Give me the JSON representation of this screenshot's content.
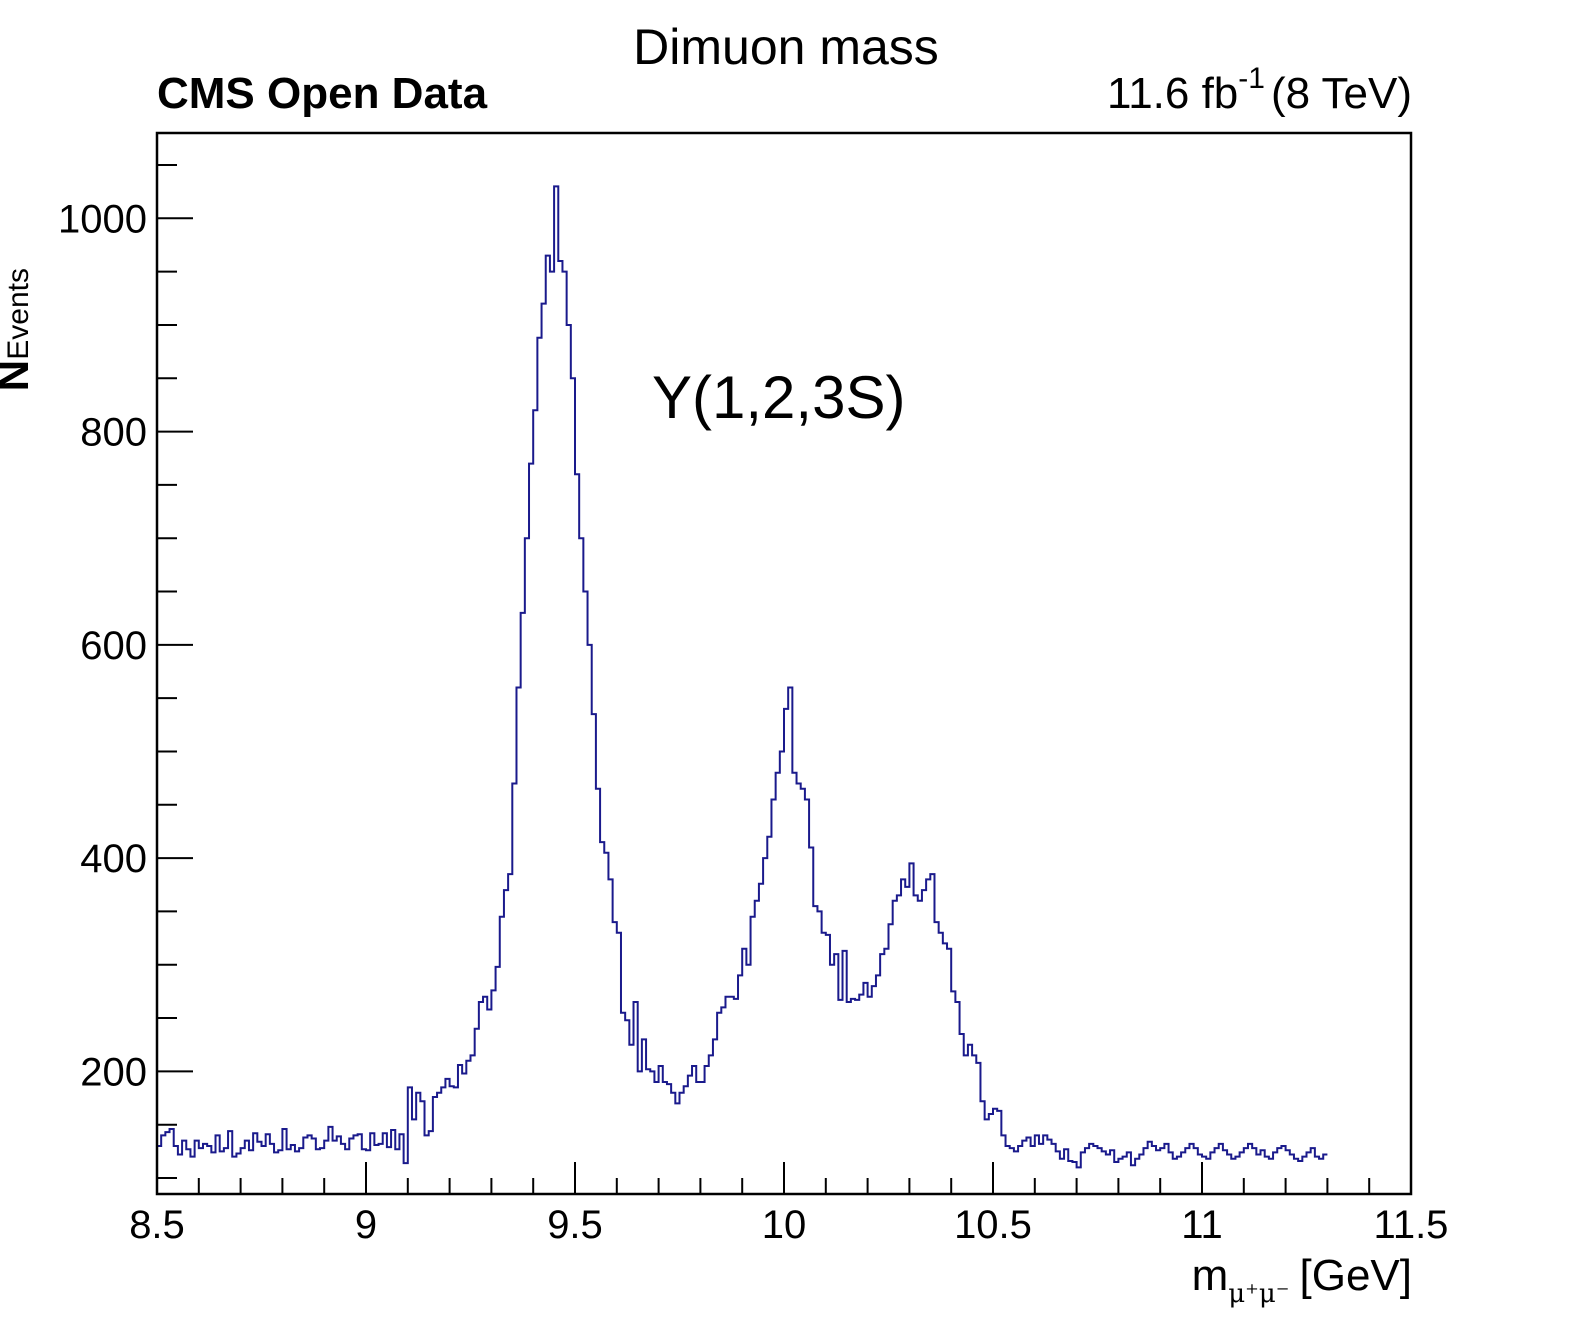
{
  "header": {
    "title": "Dimuon mass",
    "experiment": "CMS Open Data",
    "lumi_value": "11.6 fb",
    "lumi_exp": "-1",
    "energy": "(8 TeV)"
  },
  "chart_data": {
    "type": "histogram",
    "title": "Dimuon mass",
    "xlabel_base": "m",
    "xlabel_sub": "μ⁺μ⁻",
    "xlabel_unit": "[GeV]",
    "ylabel_base": "N",
    "ylabel_sub": "Events",
    "annotation": "Υ(1,2,3S)",
    "xlim": [
      8.5,
      11.5
    ],
    "ylim": [
      85,
      1080
    ],
    "x_ticks": [
      8.5,
      9,
      9.5,
      10,
      10.5,
      11,
      11.5
    ],
    "x_tick_labels": [
      "8.5",
      "9",
      "9.5",
      "10",
      "10.5",
      "11",
      "11.5"
    ],
    "y_ticks": [
      200,
      400,
      600,
      800,
      1000
    ],
    "y_tick_labels": [
      "200",
      "400",
      "600",
      "800",
      "1000"
    ],
    "grid": false,
    "line_color": "#1a1a8c",
    "x_start": 8.5,
    "bin_width": 0.01,
    "values": [
      130,
      140,
      143,
      146,
      130,
      122,
      135,
      127,
      120,
      135,
      128,
      132,
      130,
      124,
      140,
      125,
      128,
      144,
      120,
      123,
      128,
      135,
      126,
      142,
      134,
      130,
      141,
      132,
      124,
      126,
      146,
      127,
      131,
      125,
      128,
      138,
      140,
      137,
      127,
      128,
      135,
      148,
      135,
      139,
      132,
      127,
      137,
      140,
      141,
      127,
      126,
      142,
      131,
      132,
      142,
      129,
      145,
      127,
      141,
      114,
      185,
      155,
      180,
      172,
      140,
      144,
      176,
      180,
      185,
      193,
      186,
      185,
      206,
      198,
      210,
      215,
      240,
      265,
      270,
      258,
      276,
      298,
      345,
      370,
      385,
      470,
      560,
      630,
      700,
      770,
      820,
      888,
      920,
      965,
      950,
      1030,
      960,
      950,
      900,
      850,
      760,
      700,
      650,
      600,
      535,
      465,
      415,
      405,
      380,
      340,
      330,
      255,
      248,
      225,
      265,
      200,
      230,
      202,
      200,
      190,
      205,
      190,
      188,
      180,
      170,
      180,
      186,
      196,
      205,
      190,
      190,
      205,
      215,
      230,
      255,
      260,
      270,
      270,
      268,
      290,
      315,
      300,
      345,
      360,
      376,
      400,
      420,
      455,
      480,
      500,
      540,
      560,
      480,
      470,
      465,
      455,
      410,
      355,
      350,
      330,
      328,
      300,
      310,
      267,
      313,
      265,
      268,
      267,
      272,
      283,
      270,
      280,
      290,
      310,
      315,
      338,
      360,
      365,
      380,
      373,
      395,
      365,
      360,
      370,
      380,
      385,
      340,
      330,
      320,
      315,
      275,
      265,
      235,
      215,
      225,
      215,
      208,
      172,
      155,
      160,
      165,
      163,
      140,
      130,
      128,
      125,
      130,
      135,
      138,
      130,
      140,
      132,
      140,
      136,
      132,
      125,
      118,
      127,
      116,
      115,
      110,
      124,
      128,
      132,
      130,
      128,
      125,
      122,
      126,
      115,
      118,
      120,
      124,
      112,
      118,
      122,
      128,
      134,
      130,
      126,
      128,
      132,
      124,
      118,
      120,
      124,
      128,
      132,
      128,
      122,
      120,
      118,
      124,
      128,
      132,
      126,
      122,
      118,
      120,
      124,
      128,
      132,
      128,
      122,
      126,
      120,
      118,
      124,
      128,
      130,
      126,
      122,
      118,
      116,
      120,
      124,
      128,
      120,
      118,
      122
    ]
  }
}
